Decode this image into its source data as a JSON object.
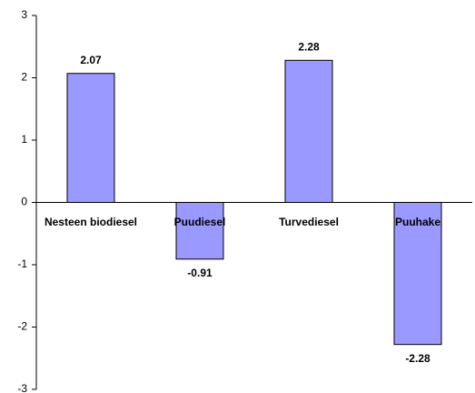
{
  "chart_data": {
    "type": "bar",
    "categories": [
      "Nesteen biodiesel",
      "Puudiesel",
      "Turvediesel",
      "Puuhake"
    ],
    "values": [
      2.07,
      -0.91,
      2.28,
      -2.28
    ],
    "color": "#9999ff",
    "ylim": [
      -3,
      3
    ],
    "yticks": [
      -3,
      -2,
      -1,
      0,
      1,
      2,
      3
    ],
    "grid": false
  }
}
